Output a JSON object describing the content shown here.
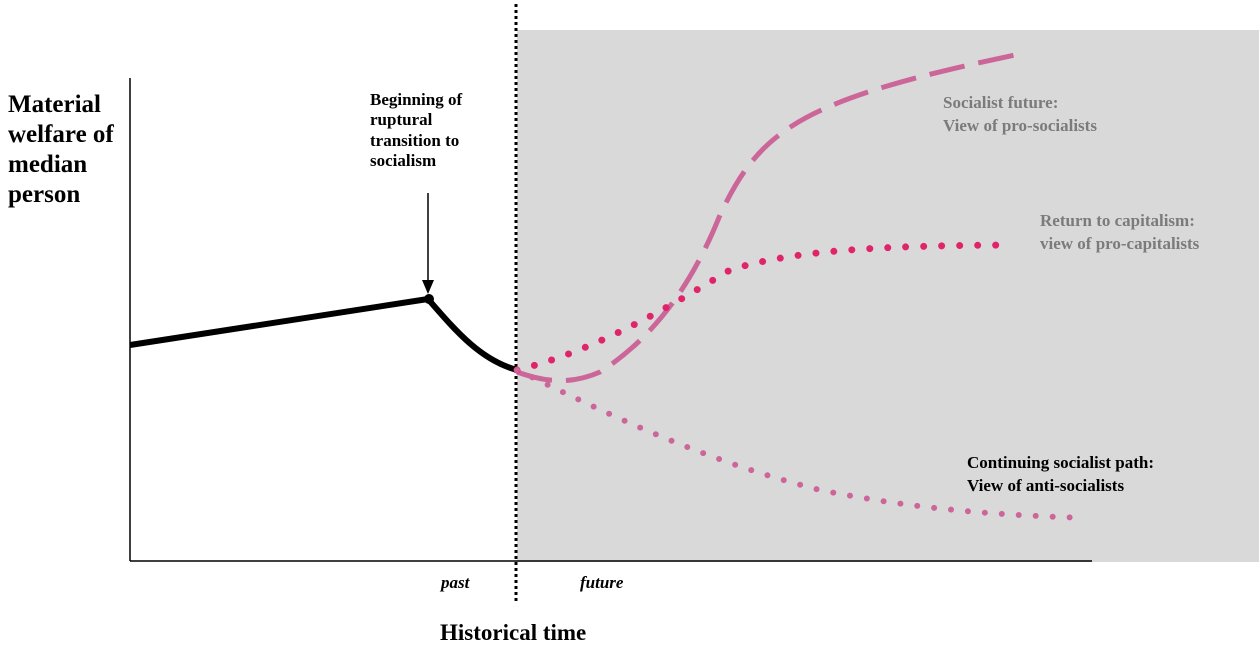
{
  "diagram": {
    "y_axis_label": "Material\nwelfare of\nmedian\nperson",
    "x_axis_label": "Historical time",
    "tick_past": "past",
    "tick_future": "future",
    "callout": "Beginning of\nruptural\ntransition to\nsocialism",
    "scenarios": [
      {
        "label": "Socialist future:\nView of pro-socialists",
        "color": "#cc6699",
        "style": "dashed",
        "text_color": "#7b7b7b"
      },
      {
        "label": "Return to capitalism:\nview of pro-capitalists",
        "color": "#e0246a",
        "style": "dotted",
        "text_color": "#7b7b7b"
      },
      {
        "label": "Continuing socialist path:\nView of anti-socialists",
        "color": "#cc6699",
        "style": "dotted",
        "text_color": "#000000"
      }
    ],
    "colors": {
      "future_shade": "#d9d9d9",
      "history_line": "#000000"
    }
  }
}
